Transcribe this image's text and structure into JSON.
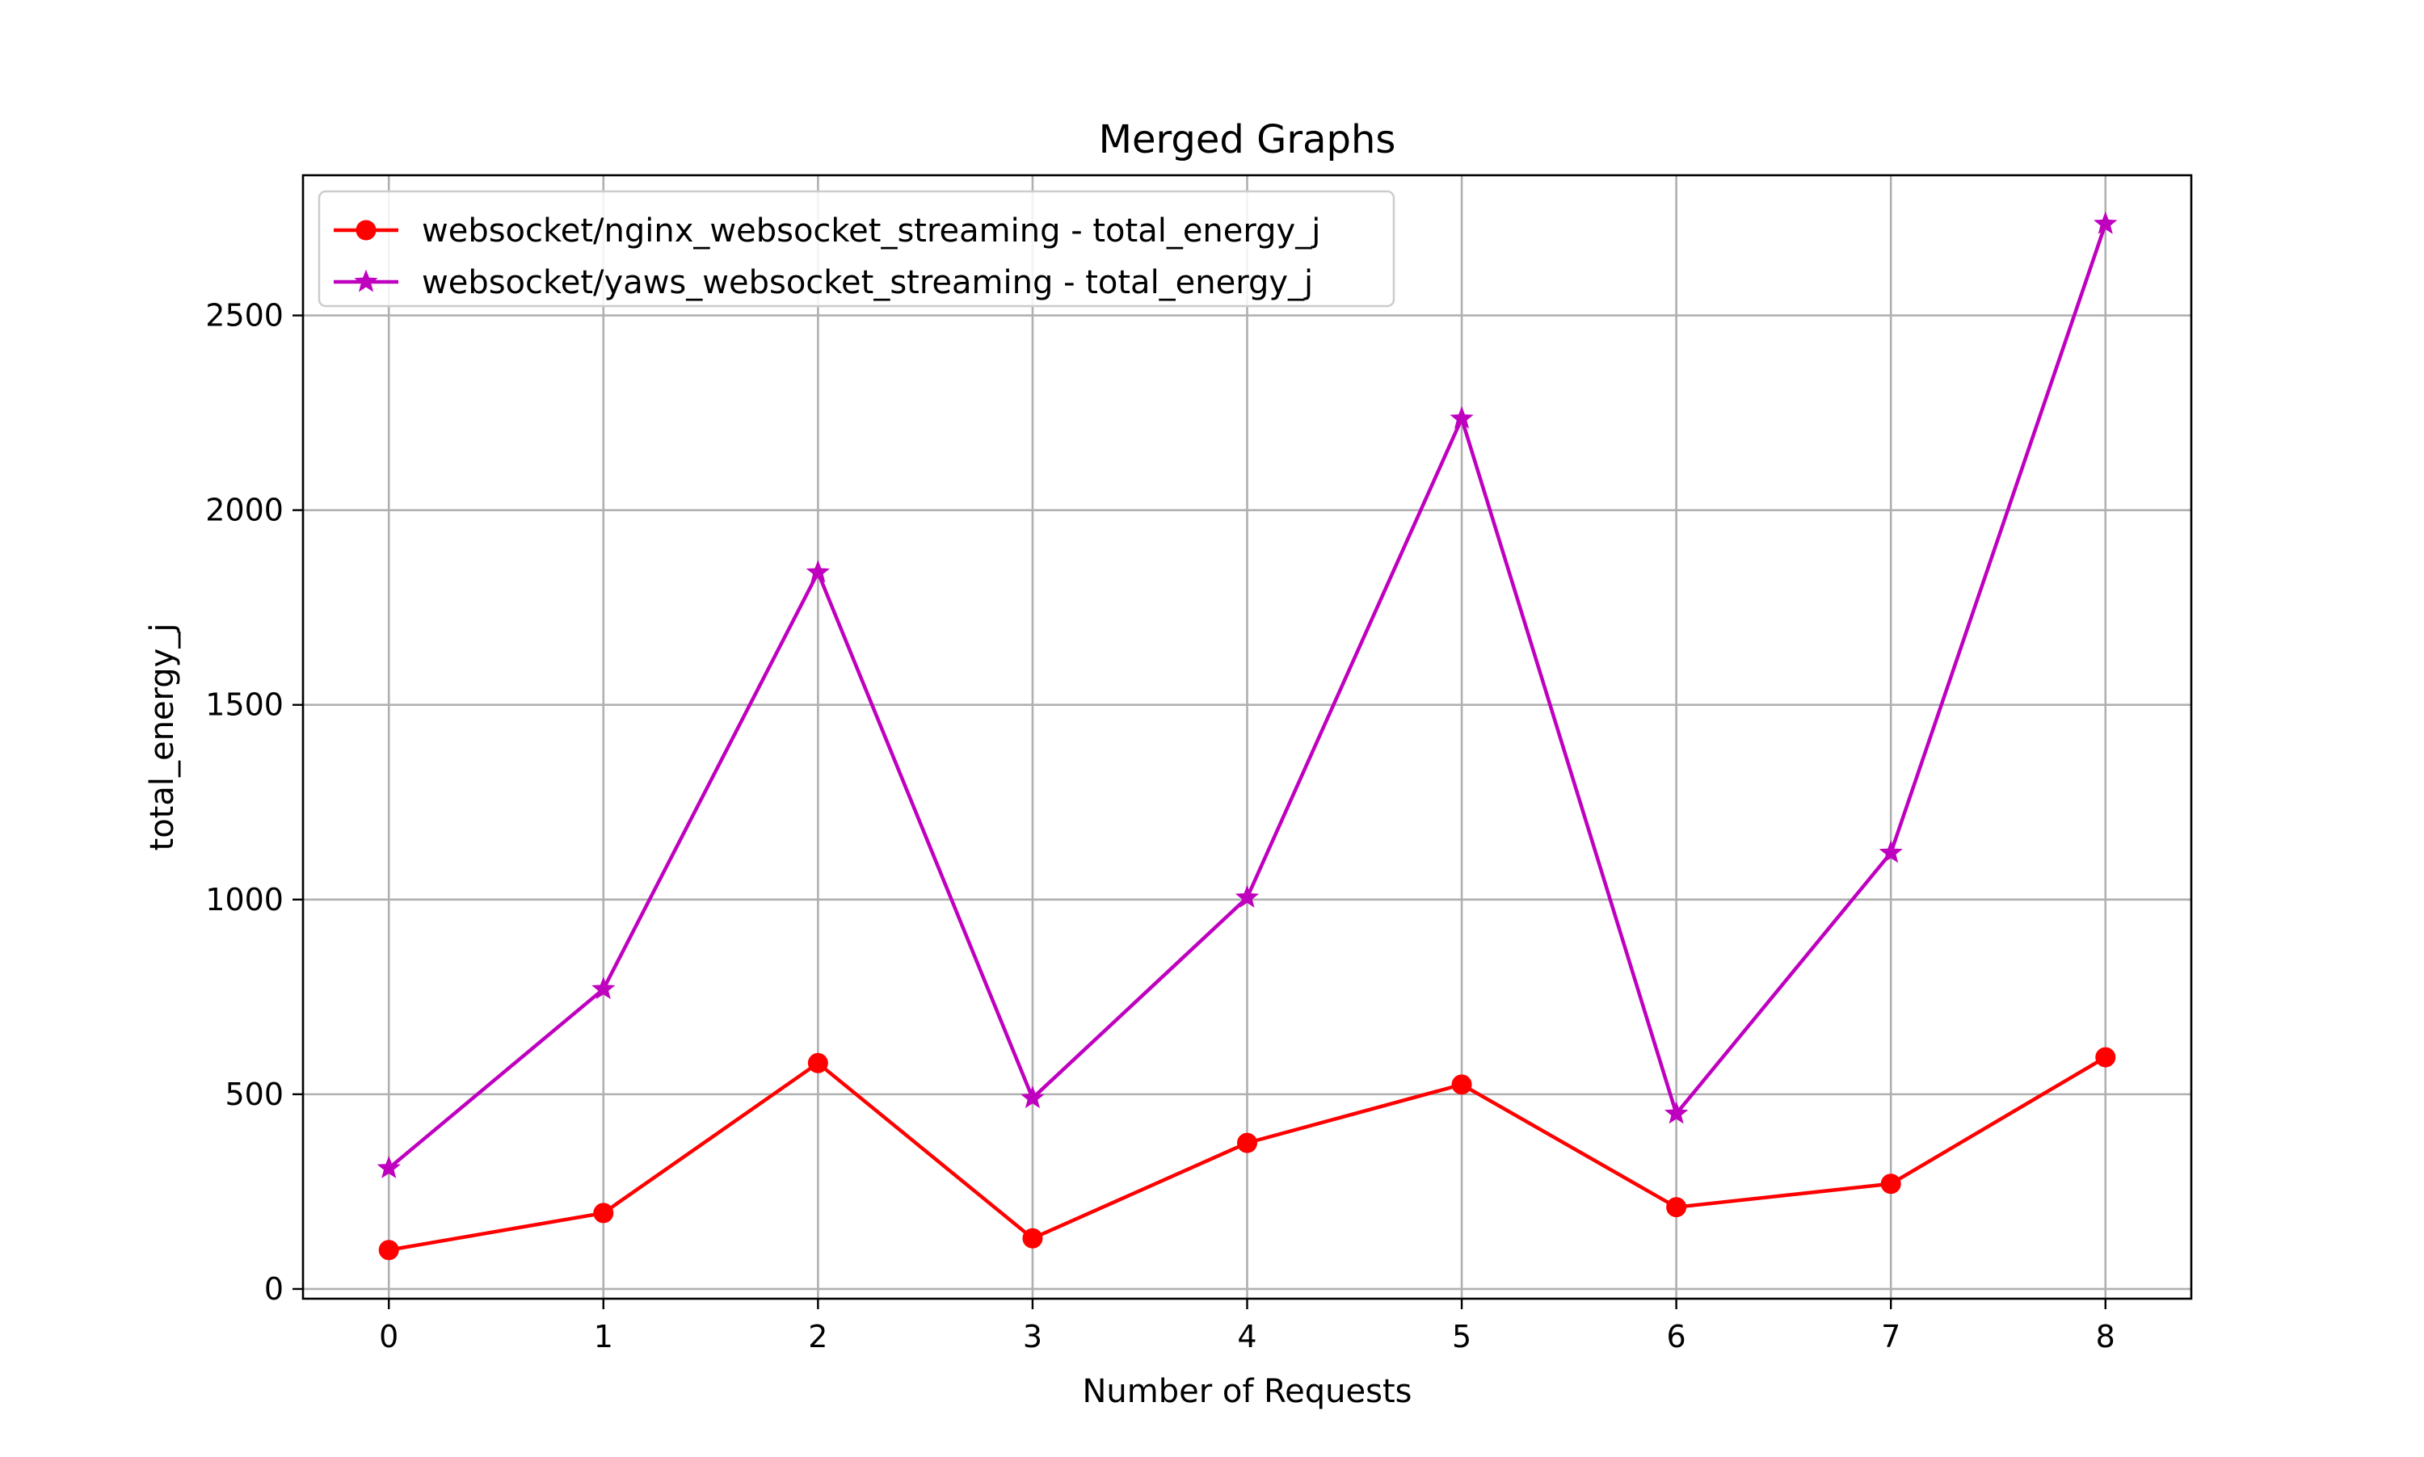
{
  "chart_data": {
    "type": "line",
    "title": "Merged Graphs",
    "xlabel": "Number of Requests",
    "ylabel": "total_energy_j",
    "xlim": [
      -0.4,
      8.4
    ],
    "ylim": [
      -25,
      2860
    ],
    "x": [
      0,
      1,
      2,
      3,
      4,
      5,
      6,
      7,
      8
    ],
    "x_ticks": [
      "0",
      "1",
      "2",
      "3",
      "4",
      "5",
      "6",
      "7",
      "8"
    ],
    "y_ticks": [
      0,
      500,
      1000,
      1500,
      2000,
      2500
    ],
    "y_tick_labels": [
      "0",
      "500",
      "1000",
      "1500",
      "2000",
      "2500"
    ],
    "grid": true,
    "legend_position": "top-left",
    "series": [
      {
        "name": "websocket/nginx_websocket_streaming - total_energy_j",
        "color": "#ff0000",
        "marker": "circle",
        "values": [
          100,
          195,
          580,
          130,
          375,
          525,
          210,
          270,
          595
        ]
      },
      {
        "name": "websocket/yaws_websocket_streaming - total_energy_j",
        "color": "#bf00bf",
        "marker": "star",
        "values": [
          310,
          770,
          1840,
          490,
          1005,
          2235,
          450,
          1120,
          2735
        ]
      }
    ]
  }
}
